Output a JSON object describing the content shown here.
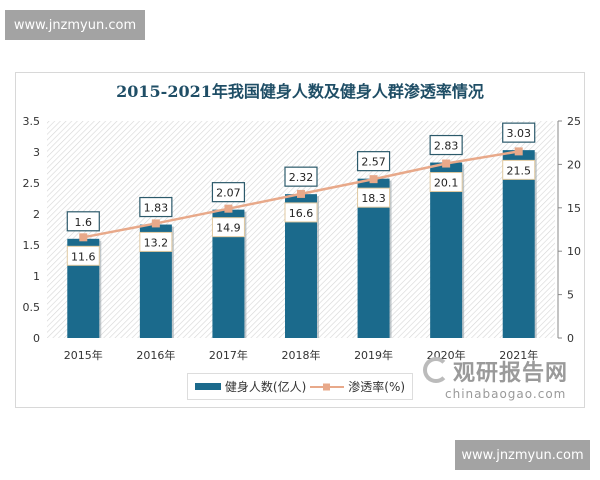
{
  "watermark_top": "www.jnzmyun.com",
  "watermark_bottom": "www.jnzmyun.com",
  "brand": {
    "name_cn": "观研报告网",
    "name_en": "chinabaogao.com"
  },
  "colors": {
    "bar": "#1b6a8c",
    "line": "#e8a98a",
    "title": "#1f4e66"
  },
  "chart_data": {
    "type": "bar+line",
    "title": "2015-2021年我国健身人数及健身人群渗透率情况",
    "categories": [
      "2015年",
      "2016年",
      "2017年",
      "2018年",
      "2019年",
      "2020年",
      "2021年"
    ],
    "series": [
      {
        "name": "健身人数(亿人)",
        "type": "bar",
        "axis": "left",
        "values": [
          1.6,
          1.83,
          2.07,
          2.32,
          2.57,
          2.83,
          3.03
        ]
      },
      {
        "name": "渗透率(%)",
        "type": "line",
        "axis": "right",
        "values": [
          11.6,
          13.2,
          14.9,
          16.6,
          18.3,
          20.1,
          21.5
        ]
      }
    ],
    "left_axis": {
      "range": [
        0,
        3.5
      ],
      "ticks": [
        "0",
        "0.5",
        "1",
        "1.5",
        "2",
        "2.5",
        "3",
        "3.5"
      ]
    },
    "right_axis": {
      "range": [
        0,
        25
      ],
      "ticks": [
        "0",
        "5",
        "10",
        "15",
        "20",
        "25"
      ]
    },
    "legend": "bottom",
    "grid": false
  }
}
